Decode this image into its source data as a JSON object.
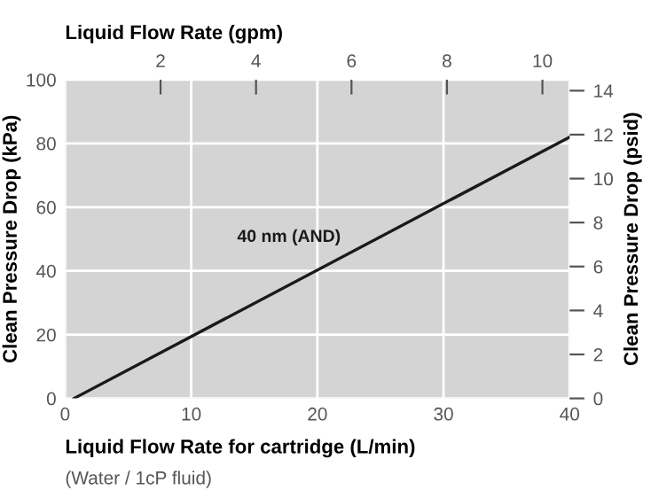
{
  "chart_data": {
    "type": "line",
    "xlabel": "Liquid Flow Rate for cartridge (L/min)",
    "ylabel": "Clean Pressure Drop (kPa)",
    "y2label": "Clean Pressure Drop (psid)",
    "x2label": "Liquid Flow Rate (gpm)",
    "annotations": [
      "(Water / 1cP fluid)"
    ],
    "series": [
      {
        "name": "40 nm (AND)",
        "color": "#1a1a1a",
        "x": [
          0.7,
          40
        ],
        "values": [
          0,
          82
        ]
      }
    ],
    "xlim": [
      0,
      40
    ],
    "xticks": [
      0,
      10,
      20,
      30,
      40
    ],
    "ylim": [
      0,
      100
    ],
    "yticks": [
      0,
      20,
      40,
      60,
      80,
      100
    ],
    "x2lim": [
      0,
      10.57
    ],
    "x2ticks": [
      2,
      4,
      6,
      8,
      10
    ],
    "y2lim": [
      0,
      14.5
    ],
    "y2ticks": [
      0,
      2,
      4,
      6,
      8,
      10,
      12,
      14
    ],
    "grid": true,
    "marker": "none",
    "line_style": "solid"
  }
}
